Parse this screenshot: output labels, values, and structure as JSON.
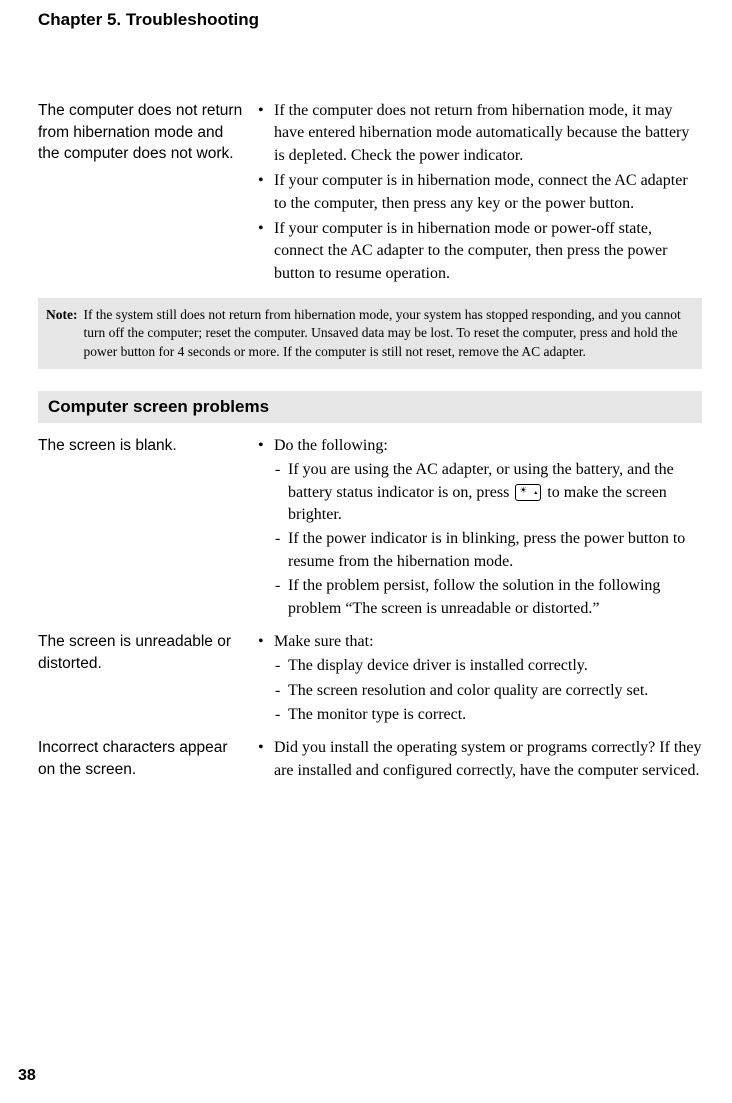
{
  "chapter_title": "Chapter 5. Troubleshooting",
  "section1": {
    "problem": "The computer does not return from hibernation mode and the computer does not work.",
    "bullets": [
      "If the computer does not return from hibernation mode, it may have entered hibernation mode automatically because the battery is depleted. Check the power indicator.",
      "If your computer is in hibernation mode, connect the AC adapter to the computer, then press any key or the power button.",
      "If your computer is in hibernation mode or power-off state, connect the AC adapter to the computer, then press the power button to resume operation."
    ]
  },
  "note": {
    "label": "Note:",
    "text": "If the system still does not return from hibernation mode, your system has stopped responding, and you cannot turn off the computer; reset the computer. Unsaved data may be lost. To reset the computer, press and hold the power button for 4 seconds or more. If the computer is still not reset, remove the AC adapter."
  },
  "section_header": "Computer screen problems",
  "section2": {
    "problem": "The screen is blank.",
    "intro": "Do the following:",
    "sub_pre": "If you are using the AC adapter, or using the battery, and the battery status indicator is on, press ",
    "sub_post": " to make the screen brighter.",
    "sub2": "If the power indicator is in blinking, press the power button to resume from the hibernation mode.",
    "sub3": "If the problem persist, follow the solution in the following problem “The screen is unreadable or distorted.”"
  },
  "section3": {
    "problem": "The screen is unreadable or distorted.",
    "intro": "Make sure that:",
    "sub1": "The display device driver is installed correctly.",
    "sub2": "The screen resolution and color quality are correctly set.",
    "sub3": "The monitor type is correct."
  },
  "section4": {
    "problem": "Incorrect characters appear on the screen.",
    "bullet": "Did you install the operating system or programs correctly? If they are installed and configured correctly, have the computer serviced."
  },
  "page_number": "38"
}
